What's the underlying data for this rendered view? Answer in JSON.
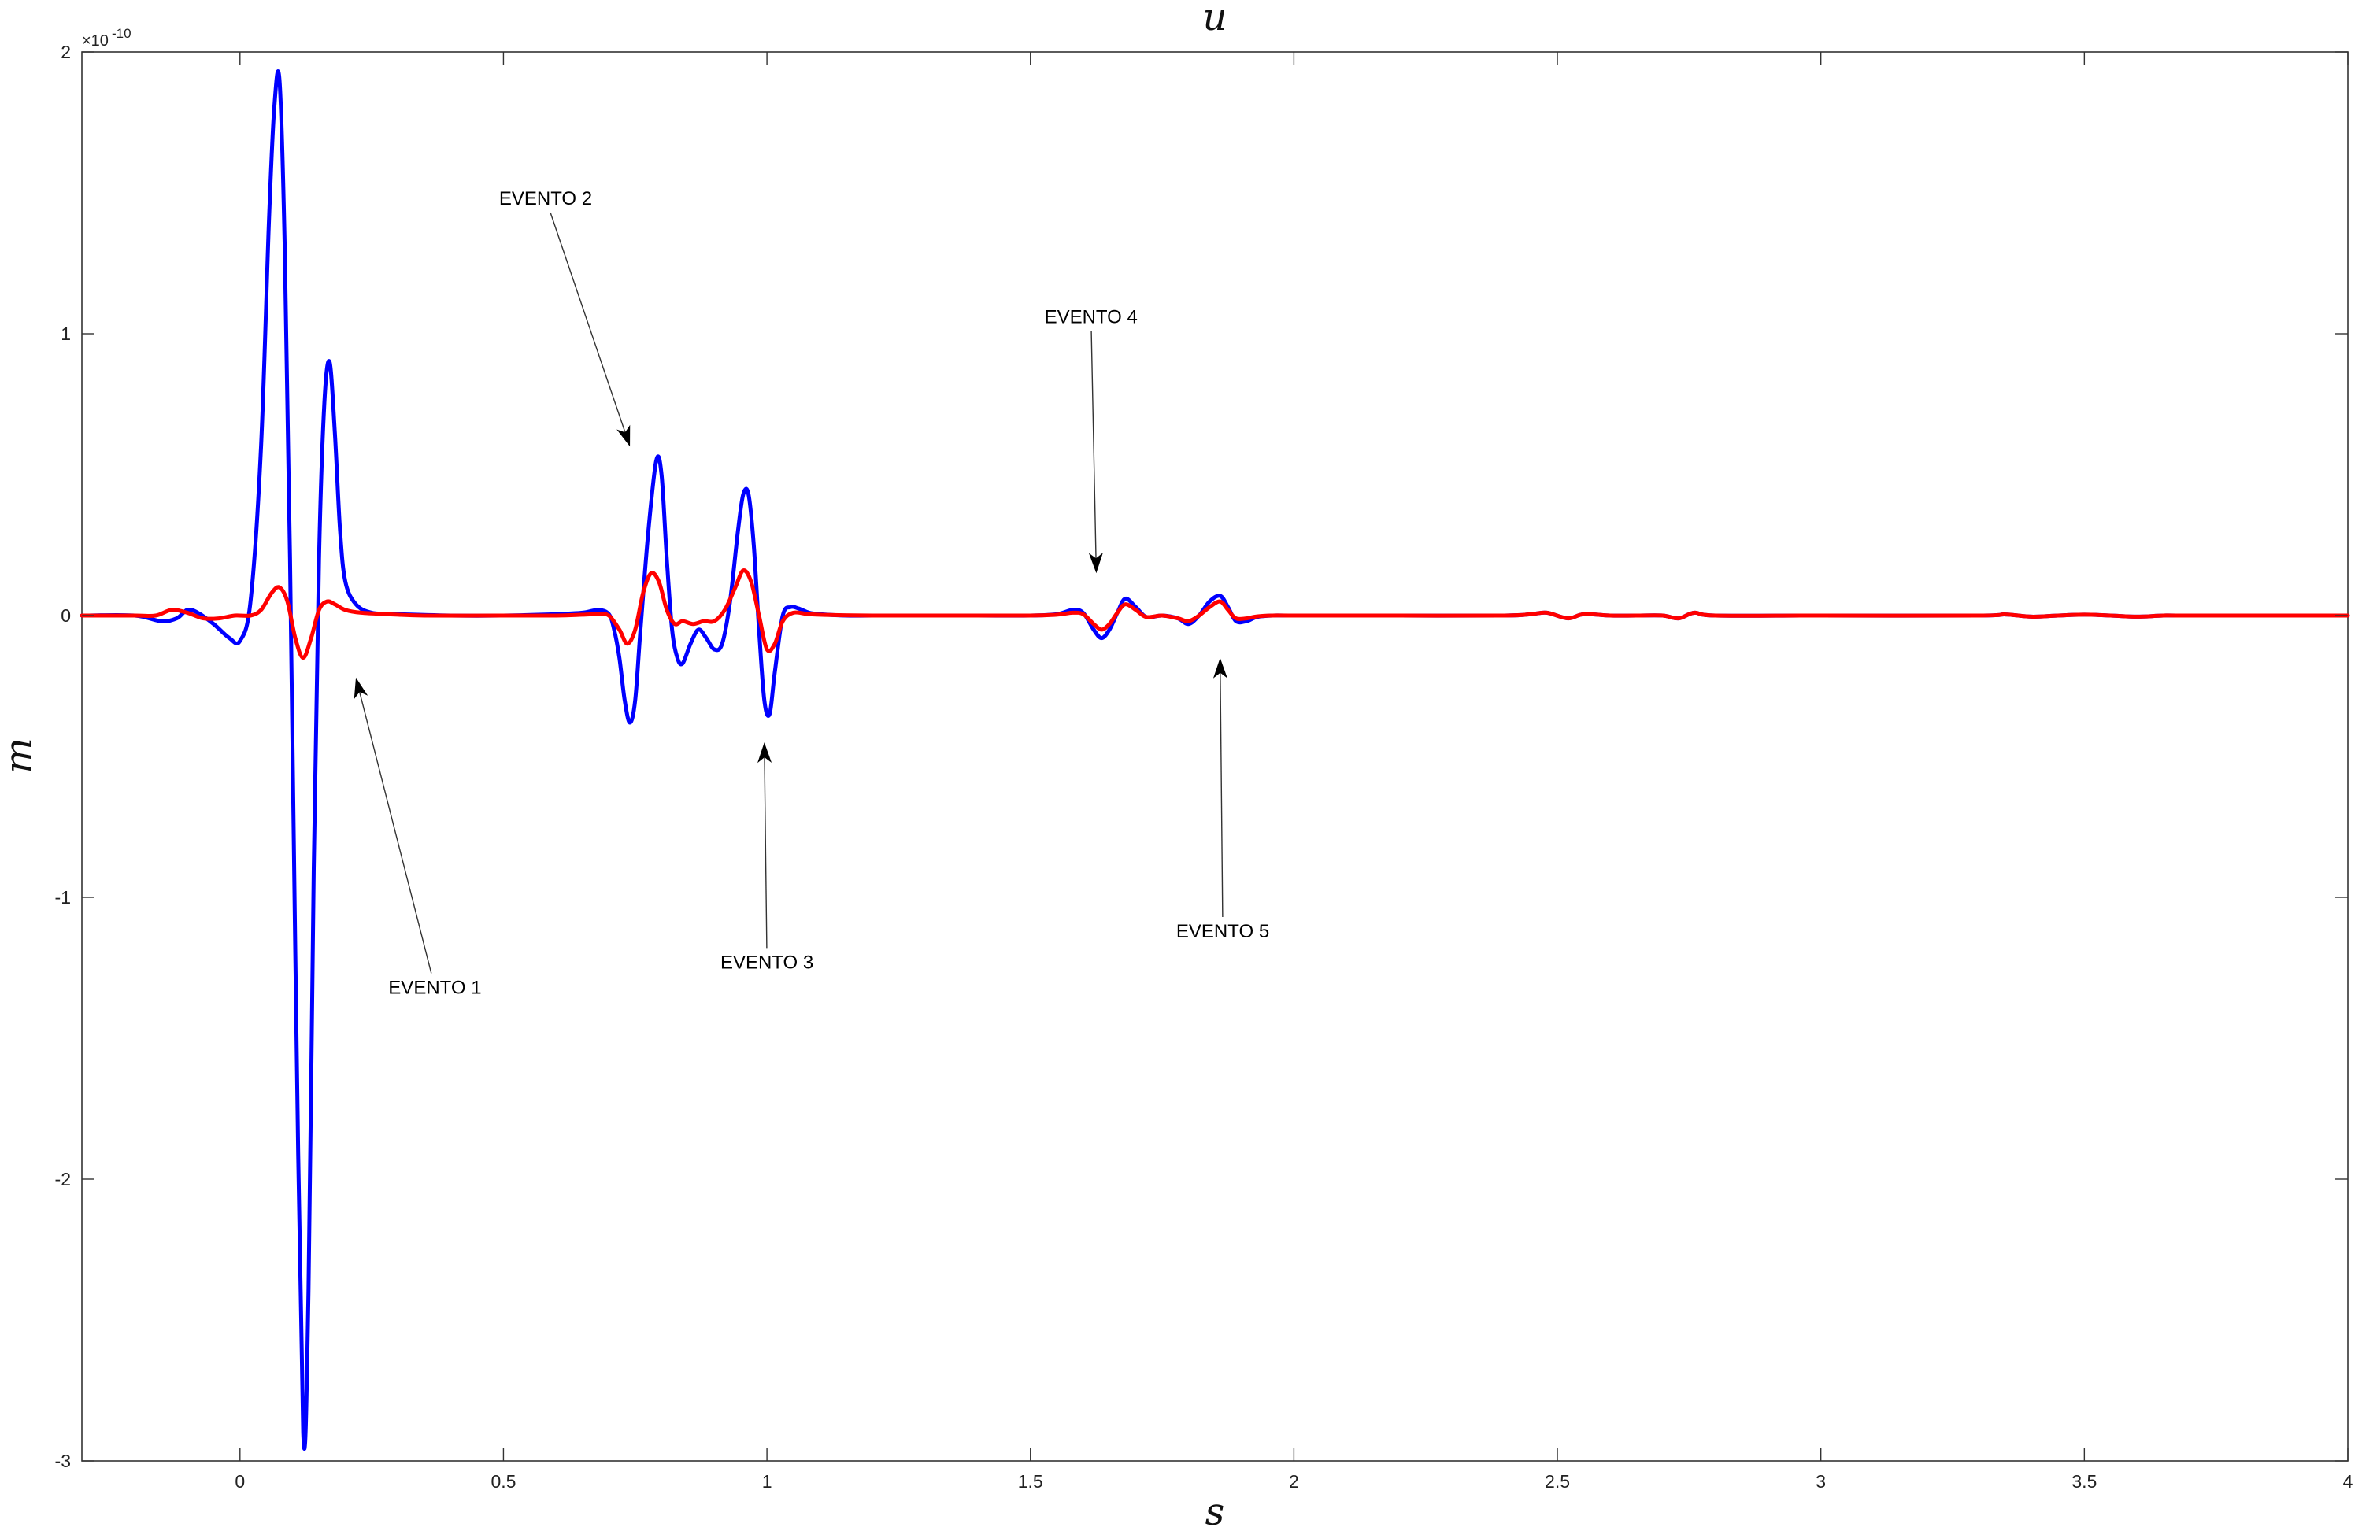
{
  "chart_data": {
    "type": "line",
    "title": "u",
    "xlabel": "s",
    "ylabel": "m",
    "xlim": [
      -0.3,
      4
    ],
    "ylim": [
      -3e-10,
      2e-10
    ],
    "y_exponent_label": "×10",
    "y_exponent_power": "-10",
    "xticks": [
      0,
      0.5,
      1,
      1.5,
      2,
      2.5,
      3,
      3.5,
      4
    ],
    "xtick_labels": [
      "0",
      "0.5",
      "1",
      "1.5",
      "2",
      "2.5",
      "3",
      "3.5",
      "4"
    ],
    "yticks": [
      2e-10,
      1e-10,
      0,
      -1e-10,
      -2e-10,
      -3e-10
    ],
    "ytick_labels": [
      "2",
      "1",
      "0",
      "-1",
      "-2",
      "-3"
    ],
    "grid": false,
    "series": [
      {
        "color": "#0000ff",
        "x": [
          -0.3,
          -0.2,
          -0.15,
          -0.12,
          -0.1,
          -0.08,
          -0.05,
          -0.02,
          0.0,
          0.02,
          0.04,
          0.055,
          0.065,
          0.075,
          0.085,
          0.095,
          0.105,
          0.12,
          0.13,
          0.14,
          0.15,
          0.16,
          0.17,
          0.18,
          0.19,
          0.2,
          0.22,
          0.25,
          0.3,
          0.4,
          0.5,
          0.6,
          0.65,
          0.68,
          0.7,
          0.71,
          0.72,
          0.73,
          0.74,
          0.75,
          0.76,
          0.775,
          0.79,
          0.8,
          0.81,
          0.82,
          0.83,
          0.84,
          0.855,
          0.87,
          0.885,
          0.9,
          0.915,
          0.93,
          0.945,
          0.955,
          0.965,
          0.975,
          0.985,
          0.995,
          1.005,
          1.015,
          1.03,
          1.045,
          1.06,
          1.08,
          1.1,
          1.15,
          1.2,
          1.3,
          1.4,
          1.5,
          1.55,
          1.58,
          1.6,
          1.62,
          1.635,
          1.65,
          1.665,
          1.68,
          1.7,
          1.72,
          1.75,
          1.78,
          1.8,
          1.82,
          1.84,
          1.86,
          1.875,
          1.89,
          1.91,
          1.93,
          1.96,
          2.0,
          2.2,
          2.4,
          2.45,
          2.48,
          2.52,
          2.55,
          2.6,
          2.65,
          2.7,
          2.73,
          2.76,
          2.8,
          3.0,
          3.3,
          3.35,
          3.4,
          3.45,
          3.5,
          3.55,
          3.6,
          3.65,
          3.7,
          4.0
        ],
        "y": [
          0,
          0,
          -2e-12,
          -1e-12,
          2e-12,
          1e-12,
          -3e-12,
          -8e-12,
          -9e-12,
          5e-12,
          6e-11,
          1.4e-10,
          1.8e-10,
          1.9e-10,
          1.3e-10,
          2e-11,
          -1.2e-10,
          -2.9e-10,
          -2.4e-10,
          -9e-11,
          2e-11,
          7.5e-11,
          9e-11,
          6.5e-11,
          3e-11,
          1.2e-11,
          4e-12,
          1e-12,
          5e-13,
          0,
          0,
          5e-13,
          1e-12,
          2e-12,
          5e-13,
          -5e-12,
          -1.5e-11,
          -3e-11,
          -3.8e-11,
          -3e-11,
          -5e-12,
          3e-11,
          5.5e-11,
          5e-11,
          2e-11,
          -5e-12,
          -1.5e-11,
          -1.7e-11,
          -1e-11,
          -5e-12,
          -8e-12,
          -1.2e-11,
          -1e-11,
          5e-12,
          3e-11,
          4.3e-11,
          4.3e-11,
          2.5e-11,
          -5e-12,
          -3e-11,
          -3.5e-11,
          -2e-11,
          0.0,
          3e-12,
          2.5e-12,
          1e-12,
          5e-13,
          0,
          0,
          0,
          0,
          0,
          5e-13,
          2e-12,
          1e-12,
          -5e-12,
          -8e-12,
          -5e-12,
          1e-12,
          6e-12,
          3e-12,
          -5e-13,
          0.0,
          -1e-12,
          -3e-12,
          0.0,
          5e-12,
          7e-12,
          3e-12,
          -2e-12,
          -2e-12,
          -5e-13,
          0,
          0,
          0,
          0,
          5e-13,
          1e-12,
          -1e-12,
          5e-13,
          0,
          0,
          0,
          -1e-12,
          1e-12,
          0,
          0,
          0,
          4e-13,
          -4e-13,
          0,
          3e-13,
          0,
          -4e-13,
          0,
          0,
          0
        ]
      },
      {
        "color": "#ff0000",
        "x": [
          -0.3,
          -0.2,
          -0.16,
          -0.13,
          -0.1,
          -0.07,
          -0.04,
          -0.01,
          0.02,
          0.04,
          0.06,
          0.075,
          0.09,
          0.105,
          0.12,
          0.135,
          0.15,
          0.165,
          0.18,
          0.2,
          0.23,
          0.28,
          0.35,
          0.5,
          0.6,
          0.65,
          0.68,
          0.7,
          0.72,
          0.735,
          0.75,
          0.765,
          0.78,
          0.795,
          0.81,
          0.825,
          0.84,
          0.86,
          0.88,
          0.9,
          0.92,
          0.94,
          0.955,
          0.97,
          0.985,
          1.0,
          1.015,
          1.03,
          1.05,
          1.08,
          1.12,
          1.2,
          1.4,
          1.5,
          1.55,
          1.58,
          1.6,
          1.62,
          1.635,
          1.65,
          1.665,
          1.68,
          1.7,
          1.72,
          1.75,
          1.78,
          1.8,
          1.82,
          1.84,
          1.86,
          1.875,
          1.89,
          1.91,
          1.93,
          1.96,
          2.0,
          2.2,
          2.4,
          2.45,
          2.48,
          2.52,
          2.55,
          2.6,
          2.65,
          2.7,
          2.73,
          2.76,
          2.8,
          3.0,
          3.3,
          3.35,
          3.4,
          3.45,
          3.5,
          3.55,
          3.6,
          3.65,
          3.7,
          4.0
        ],
        "y": [
          0,
          0,
          0.0,
          2e-12,
          1e-12,
          -1e-12,
          -1e-12,
          0.0,
          0.0,
          2e-12,
          8e-12,
          1e-11,
          5e-12,
          -8e-12,
          -1.5e-11,
          -8e-12,
          2e-12,
          5e-12,
          4e-12,
          2e-12,
          1e-12,
          5e-13,
          0,
          0,
          0,
          3e-13,
          5e-13,
          0.0,
          -5e-12,
          -1e-11,
          -5e-12,
          8e-12,
          1.5e-11,
          1.2e-11,
          2e-12,
          -3e-12,
          -2e-12,
          -3e-12,
          -2e-12,
          -2e-12,
          2e-12,
          1e-11,
          1.6e-11,
          1.2e-11,
          0.0,
          -1.2e-11,
          -1e-11,
          -2e-12,
          1e-12,
          5e-13,
          2e-13,
          0,
          0,
          0,
          3e-13,
          1e-12,
          5e-13,
          -3e-12,
          -5e-12,
          -3e-12,
          1e-12,
          4e-12,
          2e-12,
          -5e-13,
          0.0,
          -1e-12,
          -2e-12,
          0.0,
          3e-12,
          5e-12,
          2e-12,
          -1e-12,
          -1e-12,
          -3e-13,
          0,
          0,
          0,
          0,
          5e-13,
          1e-12,
          -1e-12,
          5e-13,
          0,
          0,
          0,
          -1e-12,
          1e-12,
          0,
          0,
          0,
          4e-13,
          -4e-13,
          0,
          3e-13,
          0,
          -4e-13,
          0,
          0,
          0
        ]
      }
    ],
    "annotations": [
      {
        "text": "EVENTO 1",
        "label_x": 0.37,
        "label_y": -1.32e-10,
        "arrow_x": 0.22,
        "arrow_y": -2.2e-11
      },
      {
        "text": "EVENTO 2",
        "label_x": 0.58,
        "label_y": 1.48e-10,
        "arrow_x": 0.74,
        "arrow_y": 6e-11
      },
      {
        "text": "EVENTO 3",
        "label_x": 1.0,
        "label_y": -1.23e-10,
        "arrow_x": 0.995,
        "arrow_y": -4.5e-11
      },
      {
        "text": "EVENTO 4",
        "label_x": 1.615,
        "label_y": 1.06e-10,
        "arrow_x": 1.625,
        "arrow_y": 1.5e-11
      },
      {
        "text": "EVENTO 5",
        "label_x": 1.865,
        "label_y": -1.12e-10,
        "arrow_x": 1.86,
        "arrow_y": -1.5e-11
      }
    ]
  }
}
